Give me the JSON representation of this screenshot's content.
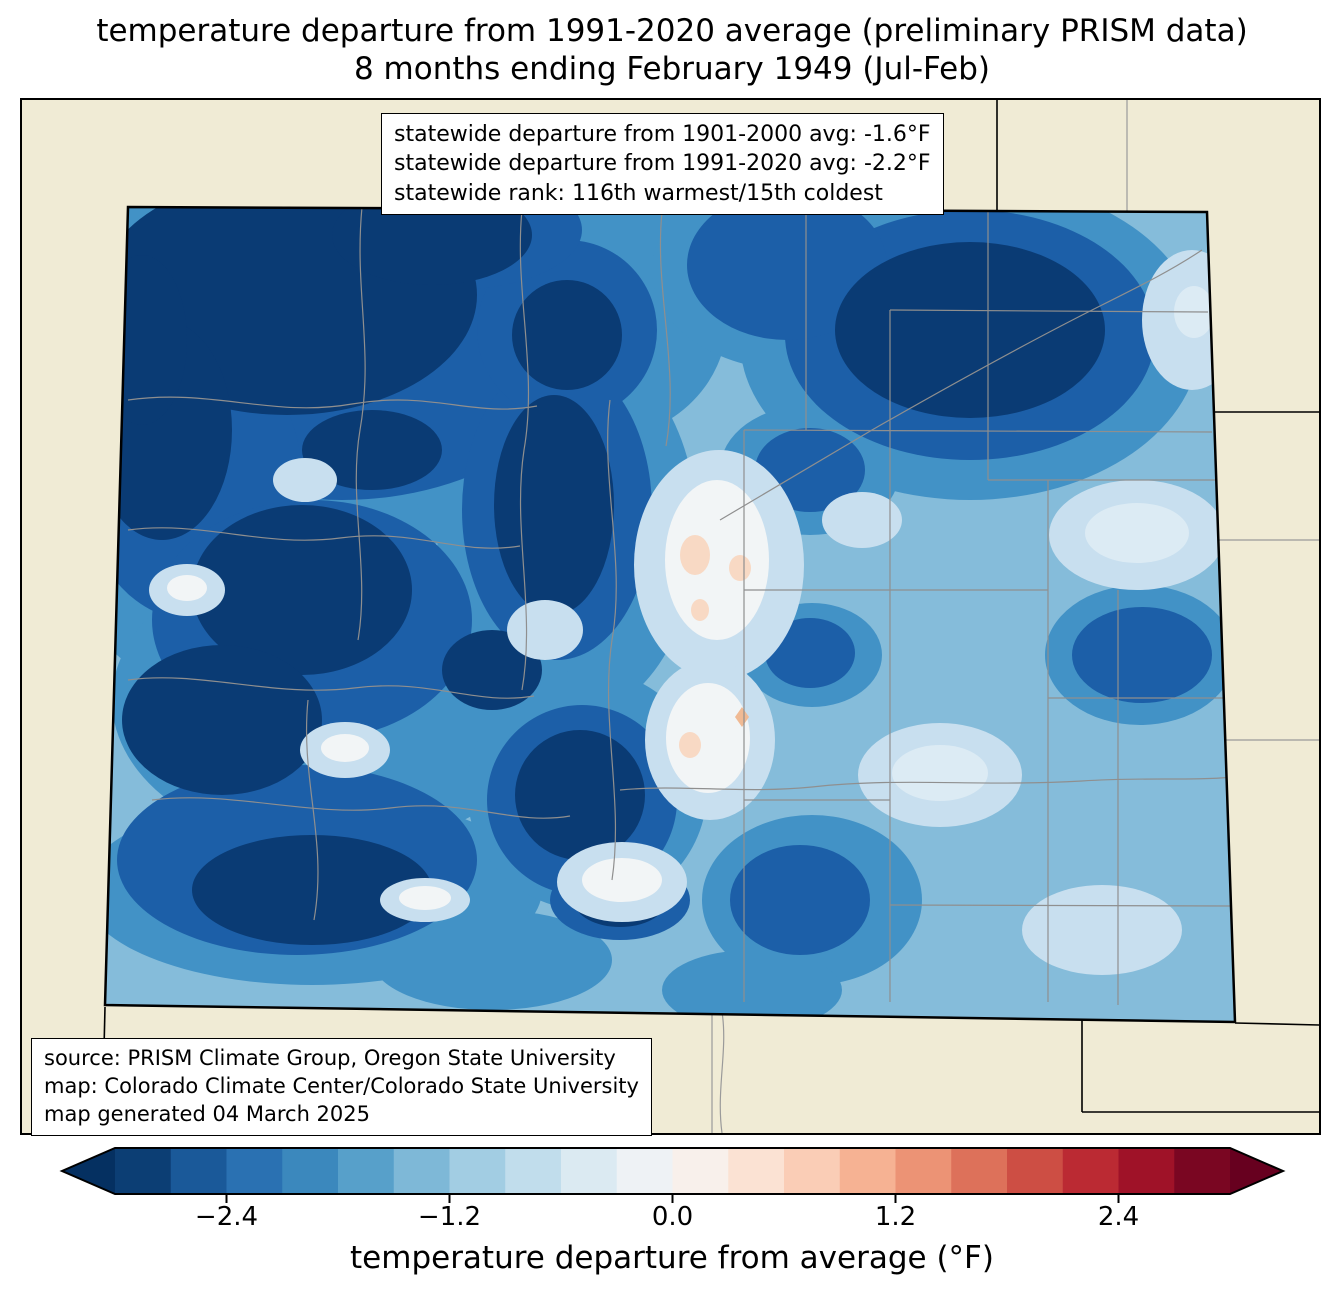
{
  "title": {
    "line1": "temperature departure from 1991-2020 average (preliminary PRISM data)",
    "line2": "8 months ending February 1949 (Jul-Feb)"
  },
  "stats_box": {
    "line1": "statewide departure from 1901-2000 avg: -1.6°F",
    "line2": "statewide departure from 1991-2020 avg: -2.2°F",
    "line3": "statewide rank: 116th warmest/15th coldest"
  },
  "source_box": {
    "line1": "source: PRISM Climate Group, Oregon State University",
    "line2": "map: Colorado Climate Center/Colorado State University",
    "line3": "map generated 04 March 2025"
  },
  "map": {
    "region": "Colorado",
    "background_color": "#f0ebd5",
    "state_border_color": "#000000",
    "county_line_color": "#8f8f8f"
  },
  "colorbar": {
    "label": "temperature departure from average (°F)",
    "range": [
      -3.0,
      3.0
    ],
    "level_step": 0.3,
    "ticks": [
      {
        "value": -2.4,
        "label": "−2.4"
      },
      {
        "value": -1.2,
        "label": "−1.2"
      },
      {
        "value": 0.0,
        "label": "0.0"
      },
      {
        "value": 1.2,
        "label": "1.2"
      },
      {
        "value": 2.4,
        "label": "2.4"
      }
    ],
    "segment_colors": [
      "#0C3E74",
      "#1A5999",
      "#2A71B2",
      "#3B88BD",
      "#57A0CA",
      "#7EB8D7",
      "#A2CDE3",
      "#C1DDEC",
      "#DBEAF2",
      "#EEF2F5",
      "#F8F0EB",
      "#FBE2D3",
      "#FACDB6",
      "#F6B293",
      "#EC9375",
      "#DD715A",
      "#CD4E44",
      "#BB2A33",
      "#9F1228",
      "#7A0622"
    ],
    "arrow_left_color": "#053061",
    "arrow_right_color": "#67001f"
  },
  "chart_data": {
    "type": "heatmap",
    "title": "temperature departure from 1991-2020 average (preliminary PRISM data)",
    "subtitle": "8 months ending February 1949 (Jul-Feb)",
    "region": "Colorado",
    "variable": "temperature departure from average (°F)",
    "statewide_departure_from_1901_2000_avg_F": -1.6,
    "statewide_departure_from_1991_2020_avg_F": -2.2,
    "statewide_rank": "116th warmest/15th coldest",
    "colorbar_ticks": [
      -2.4,
      -1.2,
      0.0,
      1.2,
      2.4
    ],
    "colorbar_range": [
      -3.0,
      3.0
    ],
    "legend_position": "bottom"
  }
}
